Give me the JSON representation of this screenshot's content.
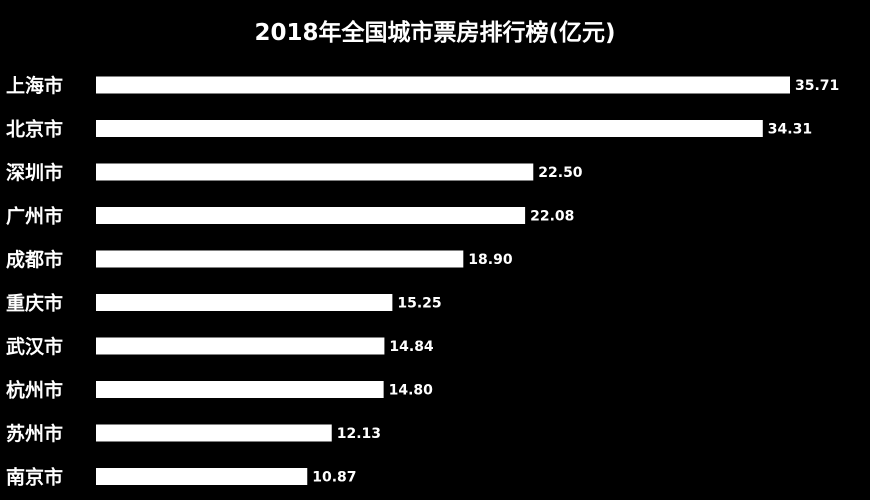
{
  "chart_data": {
    "type": "bar",
    "orientation": "horizontal",
    "title": "2018年全国城市票房排行榜(亿元)",
    "categories": [
      "上海市",
      "北京市",
      "深圳市",
      "广州市",
      "成都市",
      "重庆市",
      "武汉市",
      "杭州市",
      "苏州市",
      "南京市"
    ],
    "values": [
      35.71,
      34.31,
      22.5,
      22.08,
      18.9,
      15.25,
      14.84,
      14.8,
      12.13,
      10.87
    ],
    "value_labels": [
      "35.71",
      "34.31",
      "22.50",
      "22.08",
      "18.90",
      "15.25",
      "14.84",
      "14.80",
      "12.13",
      "10.87"
    ],
    "xlim": [
      0,
      35.71
    ],
    "grid": false,
    "legend": "none",
    "colors": {
      "background": "#000000",
      "bar": "#ffffff",
      "text": "#ffffff"
    }
  }
}
